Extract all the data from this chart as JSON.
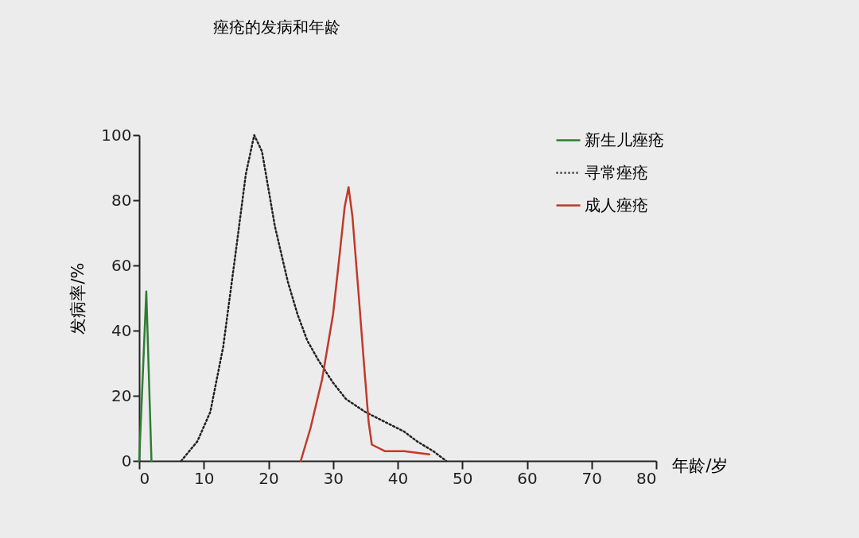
{
  "chart_data": {
    "type": "line",
    "title": "痤疮的发病和年龄",
    "xlabel": "年龄/岁",
    "ylabel": "发病率/%",
    "xlim": [
      0,
      80
    ],
    "ylim": [
      0,
      100
    ],
    "xticks": [
      0,
      10,
      20,
      30,
      40,
      50,
      60,
      70,
      80
    ],
    "yticks": [
      0,
      20,
      40,
      60,
      80,
      100
    ],
    "grid": false,
    "legend": "top right",
    "marker": "none",
    "series": [
      {
        "name": "新生儿痤疮",
        "color": "#2e7d32",
        "line_style": "solid",
        "x": [
          0,
          1.1,
          1.9
        ],
        "values": [
          0,
          52,
          0
        ]
      },
      {
        "name": "寻常痤疮",
        "color": "#222222",
        "line_style": "dotted",
        "x": [
          6.5,
          9,
          11,
          13,
          15,
          16.5,
          17.8,
          19,
          21,
          23,
          24.5,
          26,
          27.7,
          30,
          32,
          35,
          38,
          41,
          43,
          45.5,
          47.5
        ],
        "values": [
          0,
          6,
          15,
          35,
          65,
          88,
          100,
          95,
          72,
          55,
          45,
          37,
          31,
          24,
          19,
          15,
          12,
          9,
          6,
          3,
          0
        ]
      },
      {
        "name": "成人痤疮",
        "color": "#c0392b",
        "line_style": "solid",
        "x": [
          25,
          26.5,
          28.3,
          30,
          31,
          31.8,
          32.4,
          33,
          34,
          34.7,
          35.5,
          36,
          38,
          41,
          44.9
        ],
        "values": [
          0,
          10,
          25,
          45,
          63,
          78,
          84,
          75,
          50,
          32,
          12,
          5,
          3,
          3,
          2
        ]
      }
    ]
  }
}
